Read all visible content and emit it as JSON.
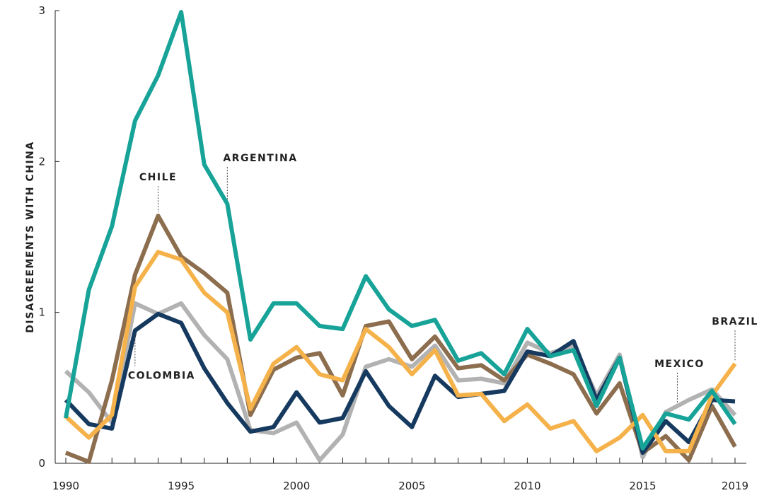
{
  "chart_data": {
    "type": "line",
    "title": "",
    "xlabel": "",
    "ylabel": "DISAGREEMENTS WITH CHINA",
    "xlim": [
      1990,
      2019
    ],
    "ylim": [
      0,
      3
    ],
    "x_ticks": [
      "1990",
      "1995",
      "2000",
      "2005",
      "2010",
      "2015",
      "2019"
    ],
    "y_ticks": [
      "0",
      "1",
      "2",
      "3"
    ],
    "grid": false,
    "x": [
      1990,
      1991,
      1992,
      1993,
      1994,
      1995,
      1996,
      1997,
      1998,
      1999,
      2000,
      2001,
      2002,
      2003,
      2004,
      2005,
      2006,
      2007,
      2008,
      2009,
      2010,
      2011,
      2012,
      2013,
      2014,
      2015,
      2016,
      2017,
      2018,
      2019
    ],
    "series": [
      {
        "name": "MEXICO",
        "color": "#b2b2b2",
        "values": [
          0.61,
          0.47,
          0.27,
          1.06,
          0.99,
          1.06,
          0.85,
          0.69,
          0.22,
          0.2,
          0.27,
          0.02,
          0.19,
          0.64,
          0.69,
          0.64,
          0.78,
          0.55,
          0.56,
          0.53,
          0.8,
          0.73,
          0.78,
          0.45,
          0.72,
          0.04,
          0.34,
          0.42,
          0.49,
          0.32
        ]
      },
      {
        "name": "CHILE",
        "color": "#8c6e4f",
        "values": [
          0.07,
          0.01,
          0.55,
          1.25,
          1.64,
          1.37,
          1.26,
          1.13,
          0.32,
          0.62,
          0.7,
          0.73,
          0.45,
          0.91,
          0.94,
          0.69,
          0.84,
          0.63,
          0.65,
          0.55,
          0.72,
          0.66,
          0.59,
          0.33,
          0.53,
          0.07,
          0.18,
          0.02,
          0.38,
          0.11
        ]
      },
      {
        "name": "COLOMBIA",
        "color": "#163a5f",
        "values": [
          0.42,
          0.26,
          0.23,
          0.88,
          0.99,
          0.93,
          0.63,
          0.4,
          0.21,
          0.24,
          0.47,
          0.27,
          0.3,
          0.61,
          0.38,
          0.24,
          0.58,
          0.44,
          0.46,
          0.48,
          0.74,
          0.71,
          0.81,
          0.42,
          0.7,
          0.07,
          0.28,
          0.14,
          0.42,
          0.41
        ]
      },
      {
        "name": "BRAZIL",
        "color": "#f5b24a",
        "values": [
          0.31,
          0.17,
          0.32,
          1.17,
          1.4,
          1.35,
          1.13,
          1.0,
          0.36,
          0.66,
          0.77,
          0.59,
          0.55,
          0.89,
          0.77,
          0.59,
          0.75,
          0.45,
          0.46,
          0.28,
          0.39,
          0.23,
          0.28,
          0.08,
          0.17,
          0.32,
          0.08,
          0.08,
          0.45,
          0.66
        ]
      },
      {
        "name": "ARGENTINA",
        "color": "#17a398",
        "values": [
          0.3,
          1.15,
          1.57,
          2.27,
          2.57,
          2.99,
          1.98,
          1.72,
          0.82,
          1.06,
          1.06,
          0.91,
          0.89,
          1.24,
          1.02,
          0.91,
          0.95,
          0.68,
          0.73,
          0.59,
          0.89,
          0.71,
          0.75,
          0.38,
          0.7,
          0.1,
          0.33,
          0.29,
          0.48,
          0.26
        ]
      }
    ],
    "annotations": [
      {
        "text": "CHILE",
        "series": "CHILE",
        "year": 1994,
        "side": "above"
      },
      {
        "text": "ARGENTINA",
        "series": "ARGENTINA",
        "year": 1997,
        "side": "above"
      },
      {
        "text": "COLOMBIA",
        "series": "COLOMBIA",
        "year": 1993,
        "side": "below"
      },
      {
        "text": "MEXICO",
        "series": "MEXICO",
        "year": 2016.5,
        "side": "above"
      },
      {
        "text": "BRAZIL",
        "series": "BRAZIL",
        "year": 2019,
        "side": "above"
      }
    ]
  }
}
